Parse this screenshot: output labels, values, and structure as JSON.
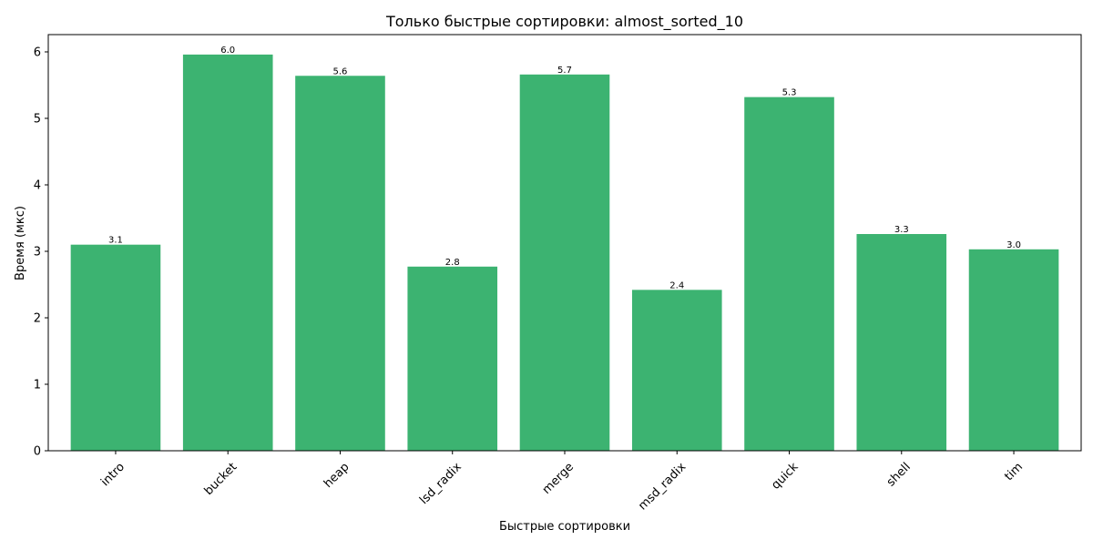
{
  "chart_data": {
    "type": "bar",
    "title": "Только быстрые сортировки: almost_sorted_10",
    "xlabel": "Быстрые сортировки",
    "ylabel": "Время (мкс)",
    "categories": [
      "intro",
      "bucket",
      "heap",
      "lsd_radix",
      "merge",
      "msd_radix",
      "quick",
      "shell",
      "tim"
    ],
    "values": [
      3.1,
      5.96,
      5.64,
      2.77,
      5.66,
      2.42,
      5.32,
      3.26,
      3.03
    ],
    "value_labels": [
      "3.1",
      "6.0",
      "5.6",
      "2.8",
      "5.7",
      "2.4",
      "5.3",
      "3.3",
      "3.0"
    ],
    "ylim": [
      0,
      6.26
    ],
    "yticks": [
      0,
      1,
      2,
      3,
      4,
      5,
      6
    ],
    "bar_color": "#3cb371",
    "grid": false,
    "legend": "none"
  }
}
